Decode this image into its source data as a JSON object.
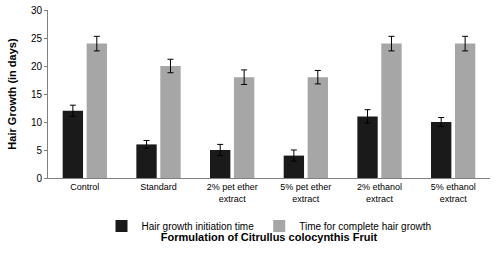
{
  "chart_data": {
    "type": "bar",
    "x_label": "Formulation of Citrullus colocynthis Fruit",
    "y_label": "Hair Growth (in days)",
    "categories": [
      "Control",
      "Standard",
      "2% pet ether extract",
      "5% pet ether extract",
      "2% ethanol extract",
      "5% ethanol extract"
    ],
    "series": [
      {
        "name": "Hair growth initiation time",
        "color": "#1a1a1a",
        "values": [
          12,
          6,
          5,
          4,
          11,
          10
        ],
        "errors": [
          1,
          0.7,
          1,
          1,
          1.2,
          0.8
        ]
      },
      {
        "name": "Time for complete hair growth",
        "color": "#a6a6a6",
        "values": [
          24,
          20,
          18,
          18,
          24,
          24
        ],
        "errors": [
          1.3,
          1.2,
          1.3,
          1.2,
          1.3,
          1.3
        ]
      }
    ],
    "ylim": [
      0,
      30
    ],
    "yticks": [
      0,
      5,
      10,
      15,
      20,
      25,
      30
    ],
    "grid": false,
    "legend": "bottom"
  }
}
